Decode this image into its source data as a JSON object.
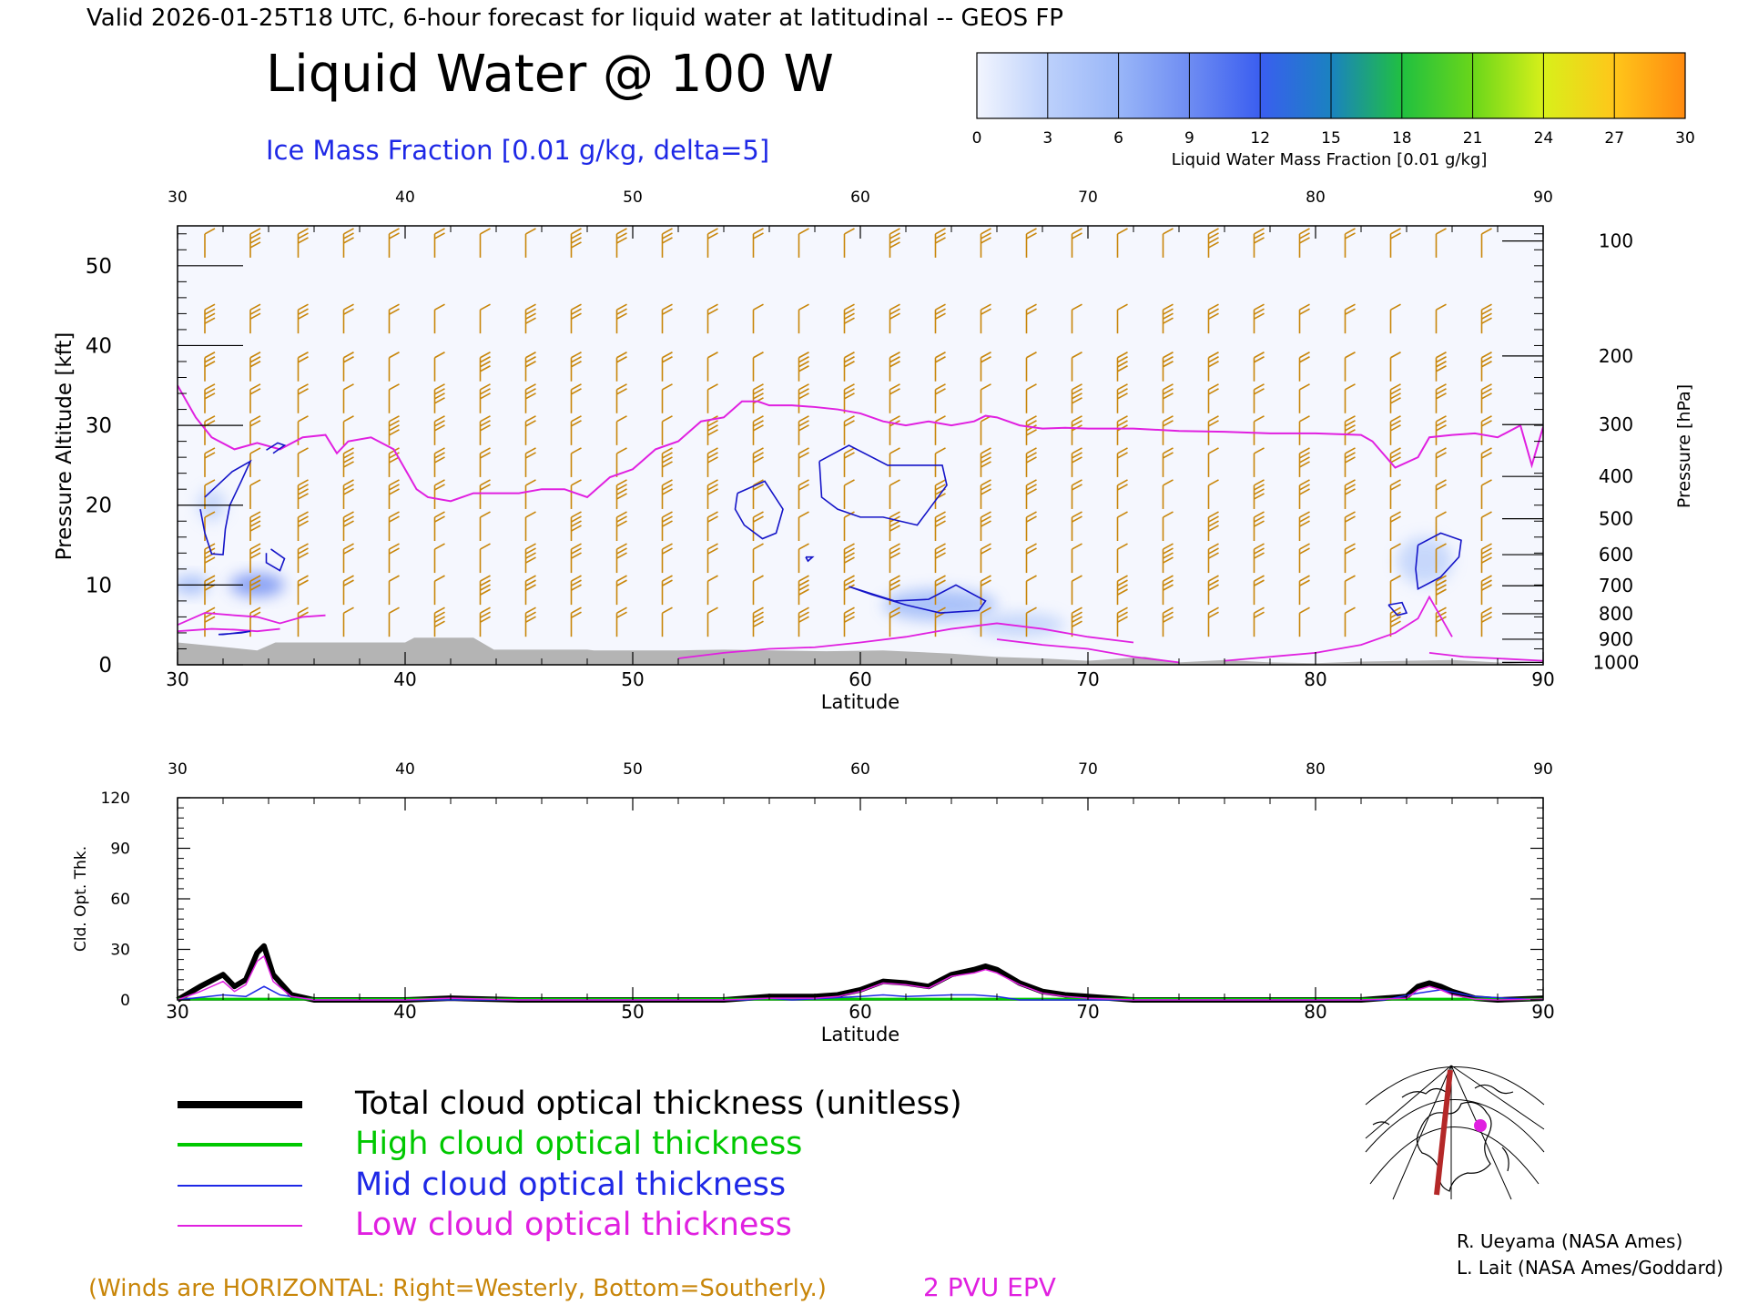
{
  "header": {
    "valid_line": "Valid 2026-01-25T18 UTC, 6-hour forecast for liquid water at latitudinal -- GEOS FP",
    "main_title": "Liquid Water @ 100 W",
    "subtitle": "Ice Mass Fraction [0.01 g/kg, delta=5]"
  },
  "colorbar": {
    "label": "Liquid Water Mass Fraction [0.01 g/kg]",
    "ticks": [
      "0",
      "3",
      "6",
      "9",
      "12",
      "15",
      "18",
      "21",
      "24",
      "27",
      "30"
    ],
    "colors": [
      "#f2f5fe",
      "#bcd0fb",
      "#99b6f8",
      "#6e8cf2",
      "#3a5ef0",
      "#1a82c0",
      "#20c040",
      "#6ad61a",
      "#d8f01a",
      "#ffc61a",
      "#ff8a10"
    ]
  },
  "colors": {
    "wind_barbs": "#c8860a",
    "ice_contour": "#1414c8",
    "epv_line": "#e020e0",
    "terrain": "#b4b4b4",
    "total": "#000000",
    "high": "#00c800",
    "mid": "#1e28e6",
    "low": "#e020e0"
  },
  "chart_data": [
    {
      "type": "heatmap",
      "title": "Liquid Water @ 100 W",
      "xlabel": "Latitude",
      "ylabel": "Pressure Altitude [kft]",
      "ylabel_right": "Pressure [hPa]",
      "xlim": [
        30,
        90
      ],
      "ylim": [
        0,
        55
      ],
      "x_ticks": [
        "30",
        "40",
        "50",
        "60",
        "70",
        "80",
        "90"
      ],
      "y_ticks": [
        "0",
        "10",
        "20",
        "30",
        "40",
        "50"
      ],
      "pressure_ticks": [
        {
          "label": "100",
          "kft": 53.1
        },
        {
          "label": "200",
          "kft": 38.7
        },
        {
          "label": "300",
          "kft": 30.1
        },
        {
          "label": "400",
          "kft": 23.6
        },
        {
          "label": "500",
          "kft": 18.3
        },
        {
          "label": "600",
          "kft": 13.8
        },
        {
          "label": "700",
          "kft": 9.9
        },
        {
          "label": "800",
          "kft": 6.4
        },
        {
          "label": "900",
          "kft": 3.2
        },
        {
          "label": "1000",
          "kft": 0.3
        }
      ],
      "epv_2pvu_line": {
        "lat": [
          30,
          30.8,
          31.5,
          32.5,
          33.5,
          34.5,
          35.5,
          36.5,
          37,
          37.5,
          38.5,
          39.5,
          40.2,
          40.5,
          41,
          42,
          43,
          44,
          45,
          46,
          47,
          48,
          49,
          50,
          51,
          52,
          53,
          54,
          54.8,
          55.5,
          56,
          57,
          58,
          59,
          60,
          61,
          62,
          63,
          64,
          65,
          65.5,
          66,
          67,
          68,
          69,
          70,
          72,
          74,
          76,
          78,
          80,
          82,
          82.5,
          83.5,
          84.5,
          85,
          86,
          87,
          88,
          89,
          89.5,
          90
        ],
        "kft": [
          35,
          31,
          28.5,
          27,
          27.8,
          27,
          28.5,
          28.8,
          26.5,
          28,
          28.5,
          27,
          23.5,
          22,
          21,
          20.5,
          21.5,
          21.5,
          21.5,
          22,
          22,
          21,
          23.5,
          24.5,
          27,
          28,
          30.5,
          31,
          33,
          33,
          32.5,
          32.5,
          32.3,
          32,
          31.5,
          30.5,
          30,
          30.5,
          30,
          30.5,
          31.2,
          31,
          30,
          29.6,
          29.7,
          29.6,
          29.6,
          29.3,
          29.2,
          29,
          29,
          28.8,
          28,
          24.7,
          26,
          28.5,
          28.8,
          29,
          28.5,
          30,
          25,
          29.8
        ]
      },
      "low_epv_lines": [
        {
          "lat": [
            30,
            31.2,
            32.5,
            33.5,
            34.5,
            35.5,
            36.5
          ],
          "kft": [
            5,
            6.5,
            6.2,
            6,
            5.2,
            6,
            6.2
          ]
        },
        {
          "lat": [
            30,
            31.5,
            32.5,
            33.5,
            34.5
          ],
          "kft": [
            4.2,
            4.5,
            4.4,
            4.2,
            4.5
          ]
        },
        {
          "lat": [
            52,
            54,
            56,
            58,
            60,
            62,
            64,
            66,
            68,
            70,
            72
          ],
          "kft": [
            0.8,
            1.5,
            2,
            2.2,
            2.8,
            3.5,
            4.5,
            5.2,
            4.5,
            3.5,
            2.8
          ]
        },
        {
          "lat": [
            66,
            68,
            70,
            72,
            74
          ],
          "kft": [
            3.2,
            2.5,
            2,
            1,
            0.3
          ]
        },
        {
          "lat": [
            76,
            78,
            80,
            82,
            83.5,
            84.5,
            85,
            86
          ],
          "kft": [
            0.5,
            1,
            1.5,
            2.5,
            4,
            5.8,
            8.5,
            3.5
          ]
        },
        {
          "lat": [
            85,
            86.5,
            88,
            90
          ],
          "kft": [
            1.5,
            1,
            0.8,
            0.5
          ]
        }
      ],
      "ice_contours": [
        {
          "lat": [
            31.2,
            32.4,
            33.2,
            32.8,
            32.3,
            32.1,
            32,
            31.5,
            31.2,
            31
          ],
          "kft": [
            21,
            24.2,
            25.5,
            23,
            20,
            17,
            13.8,
            13.9,
            16.5,
            19.5
          ]
        },
        {
          "lat": [
            34.2,
            34.7,
            34.4,
            33.9
          ],
          "kft": [
            26.5,
            27.5,
            27.8,
            26.9
          ]
        },
        {
          "lat": [
            34.1,
            34.7,
            34.5,
            33.9,
            33.9
          ],
          "kft": [
            14.5,
            13.3,
            11.8,
            12.8,
            14
          ]
        },
        {
          "lat": [
            32,
            33.2,
            32.8,
            31.8,
            32
          ],
          "kft": [
            3.8,
            4.2,
            4,
            3.8,
            3.8
          ]
        },
        {
          "lat": [
            54.6,
            55.8,
            56.6,
            56.3,
            55.7,
            54.9,
            54.5,
            54.6
          ],
          "kft": [
            21.5,
            23,
            19.5,
            16.5,
            15.8,
            17.5,
            19.5,
            21.5
          ]
        },
        {
          "lat": [
            57.6,
            57.9,
            57.7,
            57.6
          ],
          "kft": [
            13.5,
            13.5,
            13,
            13.5
          ]
        },
        {
          "lat": [
            58.2,
            59.5,
            61.2,
            62.6,
            63.6,
            63.8,
            62.5,
            61,
            60,
            59,
            58.3,
            58.2
          ],
          "kft": [
            25.5,
            27.5,
            25,
            25,
            25,
            22.5,
            17.5,
            18.5,
            18.5,
            19.5,
            21,
            25.5
          ]
        },
        {
          "lat": [
            59.5,
            61.5,
            63,
            64.2,
            65.5,
            65.2,
            63.5,
            62,
            60.5,
            59.5
          ],
          "kft": [
            9.8,
            8,
            8.2,
            10,
            8,
            6.8,
            6.5,
            7.5,
            8.8,
            9.8
          ]
        },
        {
          "lat": [
            84.5,
            85.5,
            86.4,
            86.3,
            85.5,
            84.5,
            84.4,
            84.5
          ],
          "kft": [
            15,
            16.5,
            15.6,
            13.5,
            11,
            9.5,
            12,
            15
          ]
        },
        {
          "lat": [
            83.2,
            83.8,
            84,
            83.6,
            83.2
          ],
          "kft": [
            7.5,
            7.8,
            6.5,
            6.2,
            7.5
          ]
        }
      ],
      "terrain": {
        "lat": [
          30,
          31.8,
          33.5,
          34.3,
          36,
          38,
          40,
          40.4,
          43,
          43.9,
          48,
          48.3,
          52,
          54,
          58.5,
          61,
          64,
          65.9,
          68,
          70,
          72.5,
          74,
          76,
          78,
          80,
          82,
          84,
          86,
          88,
          90
        ],
        "kft": [
          2.8,
          2.3,
          1.8,
          2.8,
          2.8,
          2.8,
          2.8,
          3.4,
          3.4,
          1.9,
          1.9,
          1.8,
          1.8,
          1.9,
          1.7,
          1.8,
          1.4,
          1.0,
          0.8,
          0.5,
          1.0,
          0.3,
          0.6,
          0.3,
          0.2,
          0.4,
          0.5,
          0.6,
          0.3,
          0
        ]
      },
      "liquid_blobs": [
        {
          "lat": 33.5,
          "kft": 10,
          "rx_deg": 1.2,
          "ry_kft": 1.5,
          "value": 9
        },
        {
          "lat": 30.6,
          "kft": 10,
          "rx_deg": 0.8,
          "ry_kft": 1.2,
          "value": 5
        },
        {
          "lat": 31.5,
          "kft": 20,
          "rx_deg": 0.6,
          "ry_kft": 2,
          "value": 4
        },
        {
          "lat": 63.5,
          "kft": 7.5,
          "rx_deg": 2.5,
          "ry_kft": 2,
          "value": 6
        },
        {
          "lat": 67,
          "kft": 5,
          "rx_deg": 2,
          "ry_kft": 1.5,
          "value": 3
        },
        {
          "lat": 84.8,
          "kft": 13,
          "rx_deg": 1.2,
          "ry_kft": 3,
          "value": 3
        }
      ],
      "wind_barb_levels_kft": [
        52.5,
        43,
        37,
        33,
        29,
        25,
        21,
        17,
        13,
        9,
        5
      ],
      "wind_barb_lats": [
        31.2,
        33.2,
        35.3,
        37.3,
        39.3,
        41.3,
        43.3,
        45.3,
        47.3,
        49.3,
        51.3,
        53.3,
        55.3,
        57.3,
        59.3,
        61.3,
        63.3,
        65.3,
        67.3,
        69.3,
        71.3,
        73.3,
        75.3,
        77.3,
        79.3,
        81.3,
        83.3,
        85.3,
        87.3
      ]
    },
    {
      "type": "line",
      "xlabel": "Latitude",
      "ylabel": "Cld. Opt. Thk.",
      "xlim": [
        30,
        90
      ],
      "ylim": [
        0,
        120
      ],
      "x_ticks": [
        "30",
        "40",
        "50",
        "60",
        "70",
        "80",
        "90"
      ],
      "y_ticks": [
        "0",
        "30",
        "60",
        "90",
        "120"
      ],
      "series": [
        {
          "name": "Total cloud optical thickness (unitless)",
          "key": "total",
          "x": [
            30,
            31,
            32,
            32.5,
            33,
            33.5,
            33.8,
            34.2,
            35,
            36,
            40,
            42,
            45,
            50,
            54,
            56,
            58,
            59,
            60,
            61,
            62,
            63,
            64,
            65,
            65.5,
            66,
            67,
            68,
            69,
            70,
            71,
            72,
            76,
            80,
            82,
            83,
            84,
            84.5,
            85,
            85.5,
            86,
            87,
            88,
            90
          ],
          "y": [
            0,
            8,
            15,
            8,
            12,
            28,
            32,
            15,
            3,
            0,
            0,
            1,
            0,
            0,
            0,
            2,
            2,
            3,
            6,
            11,
            10,
            8,
            15,
            18,
            20,
            18,
            10,
            5,
            3,
            2,
            1,
            0,
            0,
            0,
            0,
            1,
            2,
            8,
            10,
            8,
            5,
            1,
            0,
            1
          ]
        },
        {
          "name": "High cloud optical thickness",
          "key": "high",
          "x": [
            30,
            90
          ],
          "y": [
            0.5,
            0.5
          ]
        },
        {
          "name": "Mid cloud optical thickness",
          "key": "mid",
          "x": [
            30,
            32,
            33,
            33.8,
            34.5,
            36,
            55,
            56,
            57,
            60,
            61,
            62,
            64,
            65,
            66,
            67,
            83,
            84.5,
            85.5,
            87,
            90
          ],
          "y": [
            0,
            3,
            2,
            8,
            3,
            0,
            0,
            1,
            0,
            2,
            3,
            2,
            3,
            3,
            2,
            0,
            0,
            4,
            6,
            2,
            0
          ]
        },
        {
          "name": "Low cloud optical thickness",
          "key": "low",
          "x": [
            30,
            31,
            32,
            32.5,
            33,
            33.5,
            33.8,
            34.2,
            35,
            36,
            40,
            42,
            45,
            50,
            54,
            56,
            58,
            59,
            60,
            61,
            62,
            63,
            64,
            65,
            65.5,
            66,
            67,
            68,
            69,
            70,
            71,
            72,
            76,
            80,
            82,
            83,
            84,
            84.5,
            85,
            85.5,
            86,
            87,
            88,
            90
          ],
          "y": [
            0,
            5,
            11,
            5,
            9,
            23,
            26,
            11,
            2,
            0,
            0,
            1,
            0,
            0,
            0,
            1,
            1,
            2,
            5,
            10,
            9,
            7,
            14,
            16,
            18,
            16,
            9,
            4,
            2,
            1,
            0.5,
            0,
            0,
            0,
            0,
            0.5,
            1,
            6,
            8,
            6,
            3,
            0.5,
            0,
            0.5
          ]
        }
      ]
    }
  ],
  "legend": {
    "total": "Total cloud optical thickness (unitless)",
    "high": "High cloud optical thickness",
    "mid": "Mid cloud optical thickness",
    "low": "Low cloud optical thickness"
  },
  "footer": {
    "winds_note": "(Winds are HORIZONTAL: Right=Westerly, Bottom=Southerly.)",
    "epv_note": "2 PVU EPV",
    "credit1": "R. Ueyama (NASA Ames)",
    "credit2": "L. Lait (NASA Ames/Goddard)"
  }
}
